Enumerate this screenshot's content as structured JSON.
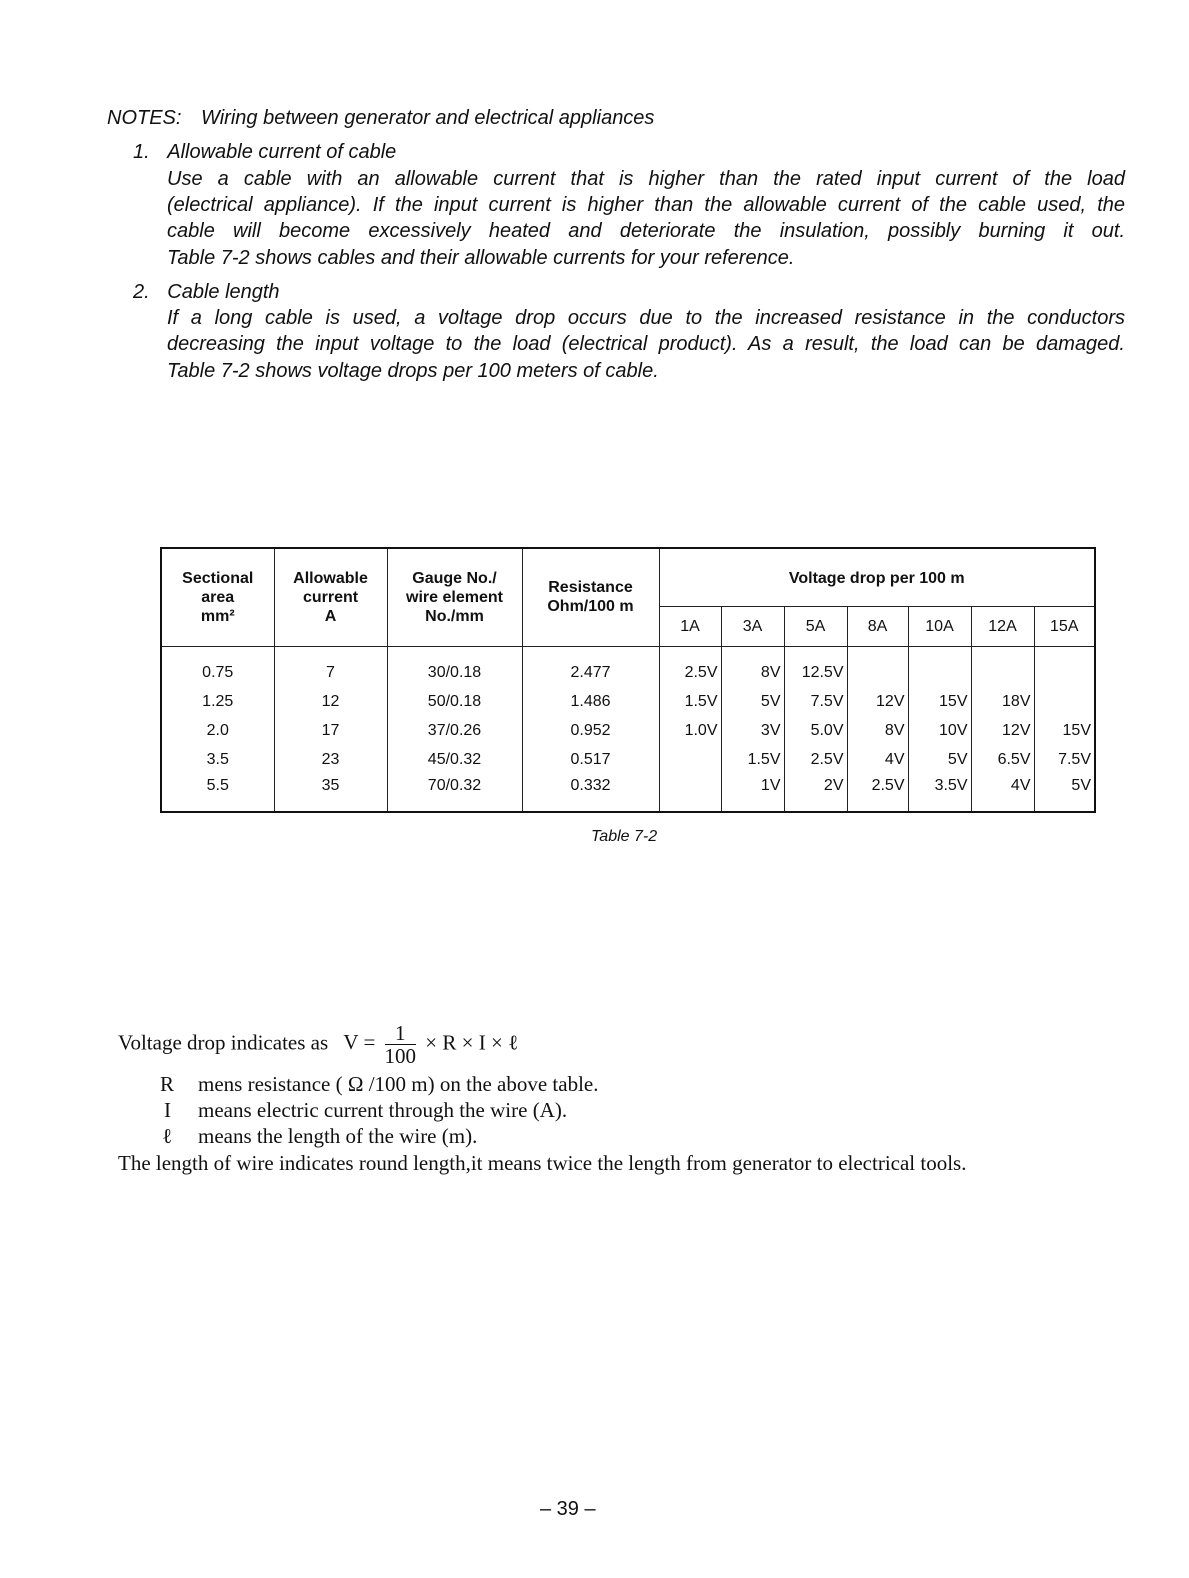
{
  "notes": {
    "label": "NOTES:",
    "title": "Wiring between generator and electrical appliances",
    "items": [
      {
        "num": "1.",
        "heading": "Allowable current of cable",
        "lines": [
          "Use a cable with an allowable current that is higher than the rated input current of the load",
          "(electrical appliance). If the input current is higher than the allowable current of the cable used, the",
          "cable will become excessively heated and deteriorate the insulation, possibly burning it out."
        ],
        "last": "Table 7-2 shows cables and their allowable currents for your reference."
      },
      {
        "num": "2.",
        "heading": "Cable length",
        "lines": [
          "If a long cable is used, a voltage drop occurs due to the increased resistance in the conductors",
          "decreasing the input voltage to the load (electrical product). As a result, the load can be damaged."
        ],
        "last": "Table 7-2 shows voltage drops per 100 meters of cable."
      }
    ]
  },
  "table": {
    "headers": {
      "sectional": [
        "Sectional",
        "area",
        "mm²"
      ],
      "allowable": [
        "Allowable",
        "current",
        "A"
      ],
      "gauge": [
        "Gauge No./",
        "wire element",
        "No./mm"
      ],
      "resistance": [
        "Resistance",
        "Ohm/100 m"
      ],
      "voltage_drop": "Voltage drop per 100 m",
      "currents": [
        "1A",
        "3A",
        "5A",
        "8A",
        "10A",
        "12A",
        "15A"
      ]
    },
    "rows": [
      [
        "0.75",
        "7",
        "30/0.18",
        "2.477",
        "2.5V",
        "8V",
        "12.5V",
        "",
        "",
        "",
        ""
      ],
      [
        "1.25",
        "12",
        "50/0.18",
        "1.486",
        "1.5V",
        "5V",
        "7.5V",
        "12V",
        "15V",
        "18V",
        ""
      ],
      [
        "2.0",
        "17",
        "37/0.26",
        "0.952",
        "1.0V",
        "3V",
        "5.0V",
        "8V",
        "10V",
        "12V",
        "15V"
      ],
      [
        "3.5",
        "23",
        "45/0.32",
        "0.517",
        "",
        "1.5V",
        "2.5V",
        "4V",
        "5V",
        "6.5V",
        "7.5V"
      ],
      [
        "5.5",
        "35",
        "70/0.32",
        "0.332",
        "",
        "1V",
        "2V",
        "2.5V",
        "3.5V",
        "4V",
        "5V"
      ]
    ],
    "caption": "Table 7-2"
  },
  "formula": {
    "intro": "Voltage drop indicates as",
    "lhs": "V =",
    "numerator": "1",
    "denominator": "100",
    "rhs": "× R × I × ℓ",
    "defs": [
      {
        "sym": "R",
        "text": "mens resistance ( Ω /100 m) on the above table."
      },
      {
        "sym": "I",
        "text": "means electric current through the wire (A)."
      },
      {
        "sym": "ℓ",
        "text": "means the length of the wire (m)."
      }
    ],
    "note": "The length of wire indicates round length,it means twice the length from generator to electrical tools."
  },
  "page_number": "– 39 –"
}
